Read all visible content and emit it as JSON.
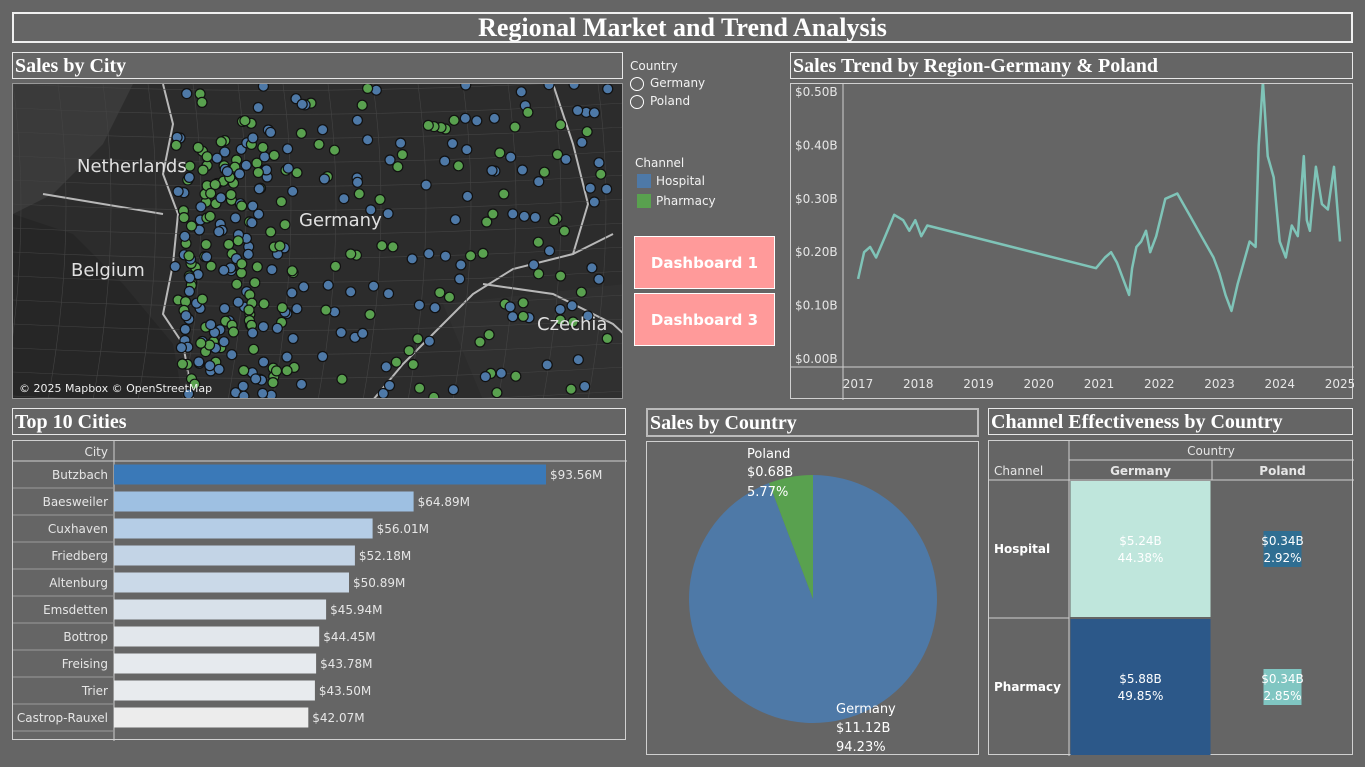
{
  "title": "Regional Market and Trend Analysis",
  "map": {
    "title": "Sales by City",
    "attribution": "© 2025 Mapbox © OpenStreetMap",
    "labels": [
      "Netherlands",
      "Germany",
      "Belgium",
      "Czechia"
    ]
  },
  "filters": {
    "country_title": "Country",
    "country_options": [
      "Germany",
      "Poland"
    ],
    "channel_title": "Channel",
    "channels": [
      {
        "label": "Hospital",
        "color": "#4e79a7"
      },
      {
        "label": "Pharmacy",
        "color": "#59a14f"
      }
    ]
  },
  "buttons": {
    "dashboard1": "Dashboard 1",
    "dashboard3": "Dashboard 3"
  },
  "colors": {
    "background": "#656565",
    "line": "#7fc4b8",
    "button": "#ff9a9a",
    "germany": "#4e79a7",
    "poland": "#59a14f"
  },
  "chart_data": [
    {
      "type": "line",
      "title": "Sales Trend by Region-Germany & Poland",
      "xlabel": "",
      "ylabel": "",
      "x_ticks": [
        "2017",
        "2018",
        "2019",
        "2020",
        "2021",
        "2022",
        "2023",
        "2024",
        "2025"
      ],
      "y_ticks": [
        "$0.00B",
        "$0.10B",
        "$0.20B",
        "$0.30B",
        "$0.40B",
        "$0.50B"
      ],
      "ylim": [
        0,
        0.5
      ],
      "xlim": [
        2016.75,
        2025.1
      ],
      "series": [
        {
          "values_x": [
            2017.0,
            2017.1,
            2017.2,
            2017.3,
            2017.45,
            2017.6,
            2017.75,
            2017.85,
            2017.95,
            2018.05,
            2018.15,
            2020.95,
            2021.1,
            2021.2,
            2021.3,
            2021.5,
            2021.55,
            2021.62,
            2021.7,
            2021.78,
            2021.85,
            2021.95,
            2022.1,
            2022.3,
            2022.5,
            2022.7,
            2022.9,
            2023.0,
            2023.1,
            2023.2,
            2023.3,
            2023.5,
            2023.6,
            2023.65,
            2023.72,
            2023.8,
            2023.9,
            2024.0,
            2024.1,
            2024.2,
            2024.3,
            2024.4,
            2024.45,
            2024.5,
            2024.6,
            2024.7,
            2024.8,
            2024.9,
            2025.0
          ],
          "values": [
            0.15,
            0.2,
            0.21,
            0.19,
            0.23,
            0.27,
            0.26,
            0.24,
            0.26,
            0.23,
            0.25,
            0.17,
            0.19,
            0.2,
            0.18,
            0.12,
            0.17,
            0.21,
            0.22,
            0.24,
            0.2,
            0.23,
            0.3,
            0.31,
            0.27,
            0.23,
            0.19,
            0.16,
            0.12,
            0.09,
            0.14,
            0.22,
            0.21,
            0.4,
            0.52,
            0.38,
            0.34,
            0.22,
            0.19,
            0.25,
            0.23,
            0.38,
            0.26,
            0.24,
            0.36,
            0.29,
            0.28,
            0.36,
            0.22
          ]
        }
      ]
    },
    {
      "type": "bar",
      "title": "Top 10 Cities",
      "xlabel": "",
      "ylabel": "City",
      "categories": [
        "Butzbach",
        "Baesweiler",
        "Cuxhaven",
        "Friedberg",
        "Altenburg",
        "Emsdetten",
        "Bottrop",
        "Freising",
        "Trier",
        "Castrop-Rauxel"
      ],
      "values": [
        93.56,
        64.89,
        56.01,
        52.18,
        50.89,
        45.94,
        44.45,
        43.78,
        43.5,
        42.07
      ],
      "value_labels": [
        "$93.56M",
        "$64.89M",
        "$56.01M",
        "$52.18M",
        "$50.89M",
        "$45.94M",
        "$44.45M",
        "$43.78M",
        "$43.50M",
        "$42.07M"
      ],
      "bar_colors": [
        "#3a79b8",
        "#9ec0e2",
        "#b5cde6",
        "#c3d4e6",
        "#cad9e8",
        "#d8e1ea",
        "#e2e7ec",
        "#e6eaee",
        "#e8ebee",
        "#ececec"
      ]
    },
    {
      "type": "pie",
      "title": "Sales by Country",
      "slices": [
        {
          "label": "Germany",
          "value": 11.12,
          "value_text": "$11.12B",
          "pct_text": "94.23%",
          "color": "#4e79a7"
        },
        {
          "label": "Poland",
          "value": 0.68,
          "value_text": "$0.68B",
          "pct_text": "5.77%",
          "color": "#59a14f"
        }
      ]
    },
    {
      "type": "table",
      "title": "Channel Effectiveness by Country",
      "column_group": "Country",
      "row_header": "Channel",
      "columns": [
        "Germany",
        "Poland"
      ],
      "rows": [
        {
          "label": "Hospital",
          "cells": [
            {
              "value": "$5.24B",
              "pct": "44.38%",
              "share": 0.4438,
              "color": "#bfe6dc"
            },
            {
              "value": "$0.34B",
              "pct": "2.92%",
              "share": 0.0292,
              "color": "#2f6e92"
            }
          ]
        },
        {
          "label": "Pharmacy",
          "cells": [
            {
              "value": "$5.88B",
              "pct": "49.85%",
              "share": 0.4985,
              "color": "#2c5889"
            },
            {
              "value": "$0.34B",
              "pct": "2.85%",
              "share": 0.0285,
              "color": "#80c6c2"
            }
          ]
        }
      ]
    }
  ]
}
